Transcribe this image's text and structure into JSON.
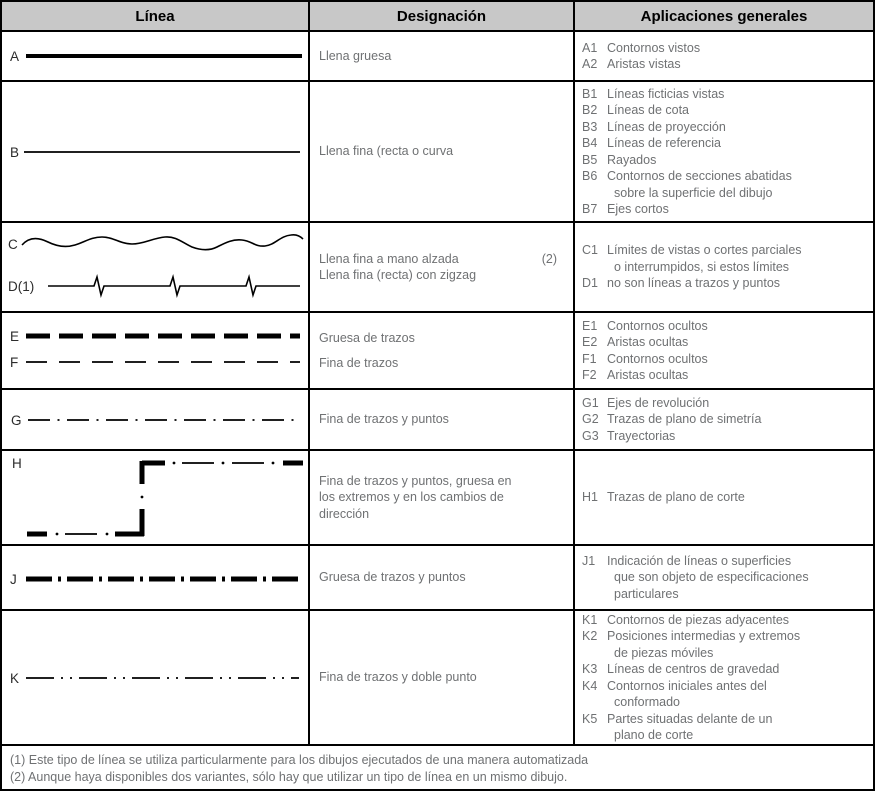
{
  "table": {
    "headers": [
      "Línea",
      "Designación",
      "Aplicaciones generales"
    ],
    "rows": [
      {
        "id": "A",
        "lines": [
          {
            "label": "A",
            "type": "solid-thick"
          }
        ],
        "designation": [
          {
            "lines": [
              "Llena gruesa"
            ]
          }
        ],
        "applications": [
          {
            "code": "A1",
            "lines": [
              "Contornos vistos"
            ]
          },
          {
            "code": "A2",
            "lines": [
              "Aristas vistas"
            ]
          }
        ]
      },
      {
        "id": "B",
        "lines": [
          {
            "label": "B",
            "type": "solid-thin"
          }
        ],
        "designation": [
          {
            "lines": [
              "Llena fina (recta o curva"
            ]
          }
        ],
        "applications": [
          {
            "code": "B1",
            "lines": [
              "Líneas ficticias vistas"
            ]
          },
          {
            "code": "B2",
            "lines": [
              "Líneas de cota"
            ]
          },
          {
            "code": "B3",
            "lines": [
              "Líneas de proyección"
            ]
          },
          {
            "code": "B4",
            "lines": [
              "Líneas de referencia"
            ]
          },
          {
            "code": "B5",
            "lines": [
              "Rayados"
            ]
          },
          {
            "code": "B6",
            "lines": [
              "Contornos de secciones abatidas",
              "sobre la superficie del dibujo"
            ]
          },
          {
            "code": "B7",
            "lines": [
              "Ejes cortos"
            ]
          }
        ]
      },
      {
        "id": "CD",
        "lines": [
          {
            "label": "C",
            "type": "freehand-wavy-thin"
          },
          {
            "label": "D(1)",
            "type": "straight-thin-with-zigzag"
          }
        ],
        "designation": [
          {
            "lines": [
              "Llena fina a mano alzada"
            ],
            "note": "(2)"
          },
          {
            "lines": [
              "Llena fina (recta) con zigzag"
            ]
          }
        ],
        "applications": [
          {
            "code": "C1",
            "lines": [
              "Límites de vistas o cortes parciales",
              "o interrumpidos, si estos límites"
            ]
          },
          {
            "code": "D1",
            "lines": [
              "no son líneas a trazos y puntos"
            ]
          }
        ]
      },
      {
        "id": "EF",
        "lines": [
          {
            "label": "E",
            "type": "dashed-thick"
          },
          {
            "label": "F",
            "type": "dashed-thin"
          }
        ],
        "designation": [
          {
            "lines": [
              "Gruesa de trazos"
            ]
          },
          {
            "lines": [
              "Fina de trazos"
            ]
          }
        ],
        "applications": [
          {
            "code": "E1",
            "lines": [
              "Contornos ocultos"
            ]
          },
          {
            "code": "E2",
            "lines": [
              "Aristas ocultas"
            ]
          },
          {
            "code": "F1",
            "lines": [
              "Contornos ocultos"
            ]
          },
          {
            "code": "F2",
            "lines": [
              "Aristas ocultas"
            ]
          }
        ]
      },
      {
        "id": "G",
        "lines": [
          {
            "label": "G",
            "type": "dash-dot-thin"
          }
        ],
        "designation": [
          {
            "lines": [
              "Fina de trazos y puntos"
            ]
          }
        ],
        "applications": [
          {
            "code": "G1",
            "lines": [
              "Ejes de revolución"
            ]
          },
          {
            "code": "G2",
            "lines": [
              "Trazas de plano de simetría"
            ]
          },
          {
            "code": "G3",
            "lines": [
              "Trayectorias"
            ]
          }
        ]
      },
      {
        "id": "H",
        "lines": [
          {
            "label": "H",
            "type": "dash-dot-thin-thick-at-ends-and-corners"
          }
        ],
        "designation": [
          {
            "lines": [
              "Fina de trazos y puntos, gruesa en",
              "los extremos y en los cambios de",
              "dirección"
            ]
          }
        ],
        "applications": [
          {
            "code": "H1",
            "lines": [
              "Trazas de plano de corte"
            ]
          }
        ]
      },
      {
        "id": "J",
        "lines": [
          {
            "label": "J",
            "type": "dash-dot-thick"
          }
        ],
        "designation": [
          {
            "lines": [
              "Gruesa de trazos y puntos"
            ]
          }
        ],
        "applications": [
          {
            "code": "J1",
            "lines": [
              "Indicación de líneas o superficies",
              "que son objeto de especificaciones",
              "particulares"
            ]
          }
        ]
      },
      {
        "id": "K",
        "lines": [
          {
            "label": "K",
            "type": "dash-dot-dot-thin"
          }
        ],
        "designation": [
          {
            "lines": [
              "Fina de trazos y doble punto"
            ]
          }
        ],
        "applications": [
          {
            "code": "K1",
            "lines": [
              "Contornos de piezas adyacentes"
            ]
          },
          {
            "code": "K2",
            "lines": [
              "Posiciones intermedias y extremos",
              "de piezas móviles"
            ]
          },
          {
            "code": "K3",
            "lines": [
              "Líneas de centros de gravedad"
            ]
          },
          {
            "code": "K4",
            "lines": [
              "Contornos iniciales antes del",
              "conformado"
            ]
          },
          {
            "code": "K5",
            "lines": [
              "Partes situadas delante de un",
              "plano de corte"
            ]
          }
        ]
      }
    ],
    "footnotes": [
      "(1) Este tipo de línea se utiliza particularmente para los dibujos ejecutados de una manera automatizada",
      "(2) Aunque haya disponibles dos variantes, sólo hay que utilizar un tipo de línea en un mismo dibujo."
    ],
    "colors": {
      "header_bg": "#c8c8c8",
      "border": "#000000",
      "text_gray": "#6f7173",
      "label_dark": "#2c2c2c",
      "line_black": "#000000"
    }
  }
}
